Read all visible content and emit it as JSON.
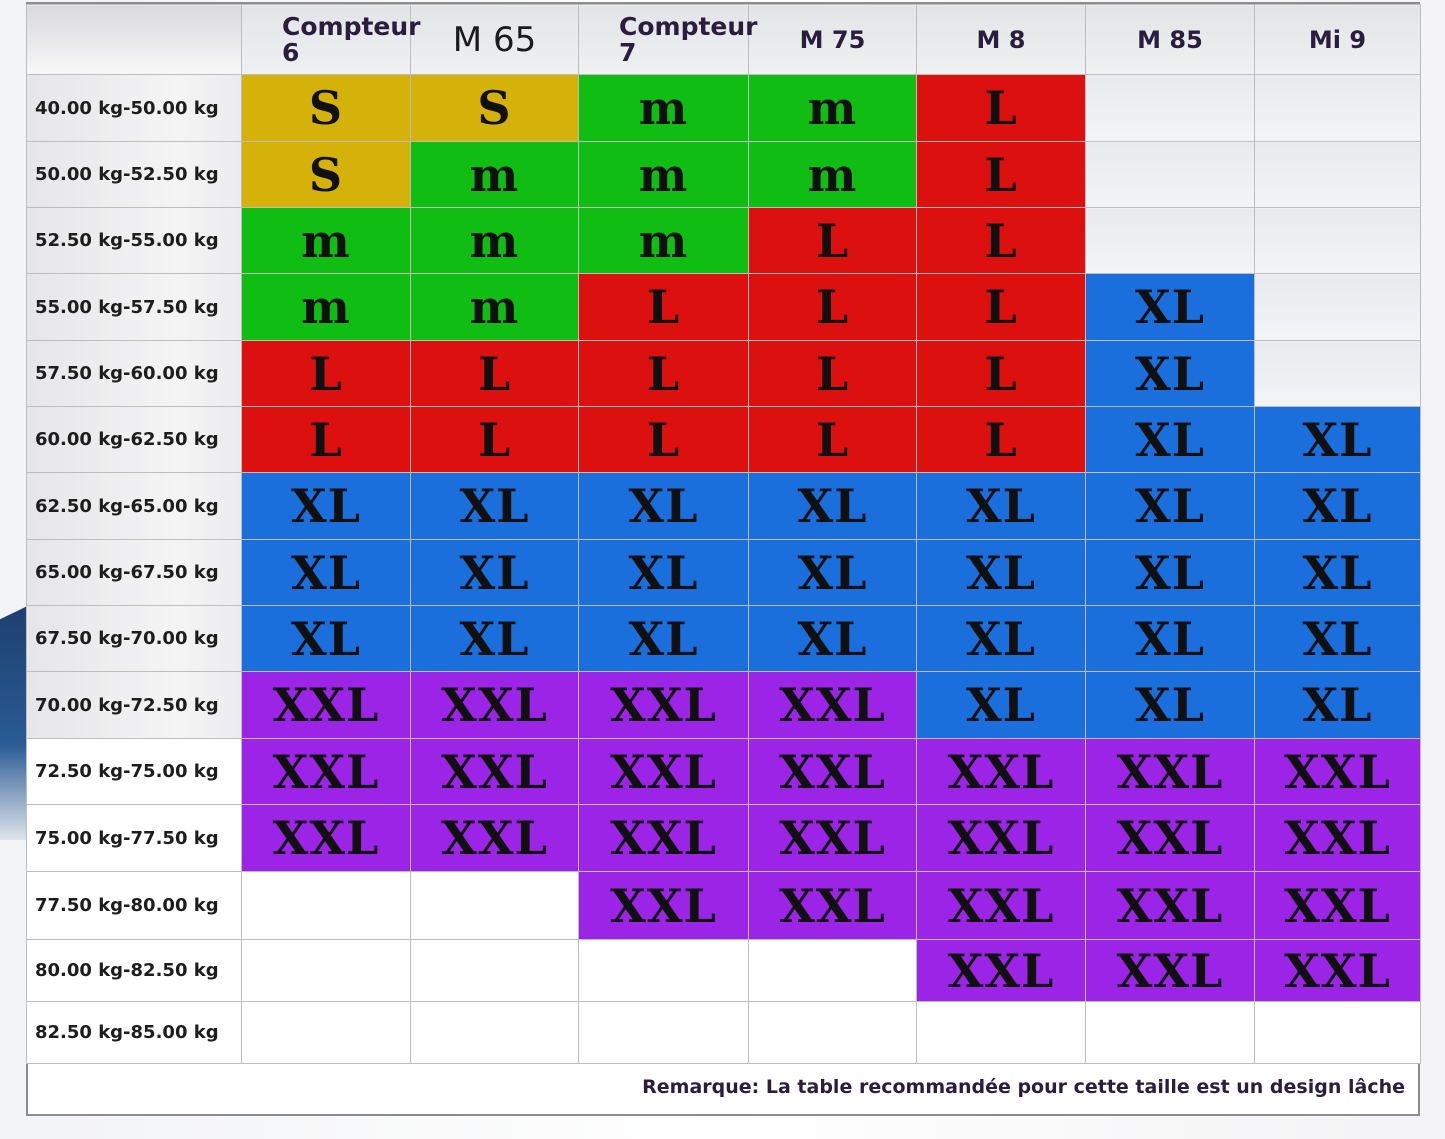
{
  "columns": [
    "Compteur 6",
    "M 65",
    "Compteur 7",
    "M 75",
    "M 8",
    "M 85",
    "Mi 9"
  ],
  "colors": {
    "S": "#d4b20a",
    "m": "#0fbd13",
    "L": "#dd1010",
    "XL": "#1b6fdd",
    "XXL": "#9b24e6",
    "": "#ffffff"
  },
  "rows": [
    {
      "range": "40.00 kg-50.00 kg",
      "cells": [
        "S",
        "S",
        "m",
        "m",
        "L",
        "",
        ""
      ]
    },
    {
      "range": "50.00 kg-52.50 kg",
      "cells": [
        "S",
        "m",
        "m",
        "m",
        "L",
        "",
        ""
      ]
    },
    {
      "range": "52.50 kg-55.00 kg",
      "cells": [
        "m",
        "m",
        "m",
        "L",
        "L",
        "",
        ""
      ]
    },
    {
      "range": "55.00 kg-57.50 kg",
      "cells": [
        "m",
        "m",
        "L",
        "L",
        "L",
        "XL",
        ""
      ]
    },
    {
      "range": "57.50 kg-60.00 kg",
      "cells": [
        "L",
        "L",
        "L",
        "L",
        "L",
        "XL",
        ""
      ]
    },
    {
      "range": "60.00 kg-62.50 kg",
      "cells": [
        "L",
        "L",
        "L",
        "L",
        "L",
        "XL",
        "XL"
      ]
    },
    {
      "range": "62.50 kg-65.00 kg",
      "cells": [
        "XL",
        "XL",
        "XL",
        "XL",
        "XL",
        "XL",
        "XL"
      ]
    },
    {
      "range": "65.00 kg-67.50 kg",
      "cells": [
        "XL",
        "XL",
        "XL",
        "XL",
        "XL",
        "XL",
        "XL"
      ]
    },
    {
      "range": "67.50 kg-70.00 kg",
      "cells": [
        "XL",
        "XL",
        "XL",
        "XL",
        "XL",
        "XL",
        "XL"
      ]
    },
    {
      "range": "70.00 kg-72.50 kg",
      "cells": [
        "XXL",
        "XXL",
        "XXL",
        "XXL",
        "XL",
        "XL",
        "XL"
      ]
    },
    {
      "range": "72.50 kg-75.00 kg",
      "cells": [
        "XXL",
        "XXL",
        "XXL",
        "XXL",
        "XXL",
        "XXL",
        "XXL"
      ]
    },
    {
      "range": "75.00 kg-77.50 kg",
      "cells": [
        "XXL",
        "XXL",
        "XXL",
        "XXL",
        "XXL",
        "XXL",
        "XXL"
      ]
    },
    {
      "range": "77.50 kg-80.00 kg",
      "cells": [
        "",
        "",
        "XXL",
        "XXL",
        "XXL",
        "XXL",
        "XXL"
      ]
    },
    {
      "range": "80.00 kg-82.50 kg",
      "cells": [
        "",
        "",
        "",
        "",
        "XXL",
        "XXL",
        "XXL"
      ]
    },
    {
      "range": "82.50 kg-85.00 kg",
      "cells": [
        "",
        "",
        "",
        "",
        "",
        "",
        ""
      ]
    }
  ],
  "note": "Remarque: La table recommandée pour cette taille est un design lâche"
}
